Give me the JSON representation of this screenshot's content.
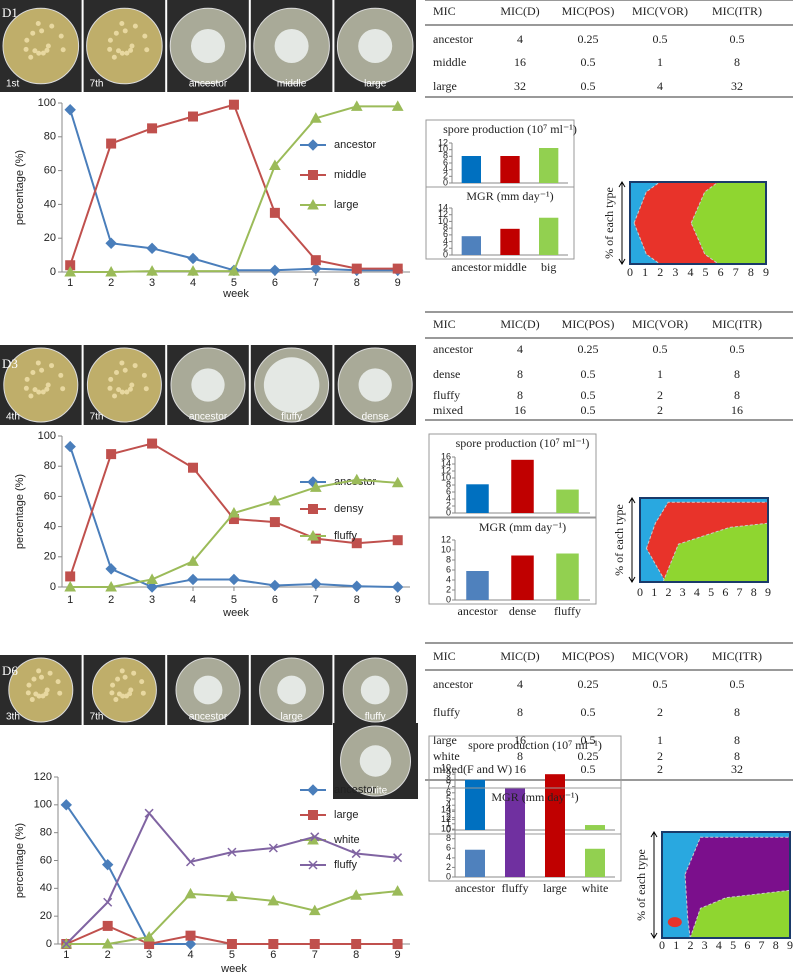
{
  "panels": [
    {
      "label": "D1",
      "photos": [
        "1st",
        "7th",
        "ancestor",
        "middle",
        "large"
      ],
      "table": {
        "header": [
          "MIC",
          "MIC(D)",
          "MIC(POS)",
          "MIC(VOR)",
          "MIC(ITR)"
        ],
        "rows": [
          [
            "ancestor",
            4,
            0.25,
            0.5,
            0.5
          ],
          [
            "middle",
            16,
            0.5,
            1,
            8
          ],
          [
            "large",
            32,
            0.5,
            4,
            32
          ]
        ]
      },
      "muller": {
        "ylabel": "% of each type",
        "xticks": [
          0,
          1,
          2,
          3,
          4,
          5,
          6,
          7,
          8,
          9
        ]
      }
    },
    {
      "label": "D3",
      "photos": [
        "4th",
        "7th",
        "ancestor",
        "fluffy",
        "dense"
      ],
      "table": {
        "header": [
          "MIC",
          "MIC(D)",
          "MIC(POS)",
          "MIC(VOR)",
          "MIC(ITR)"
        ],
        "rows": [
          [
            "ancestor",
            4,
            0.25,
            0.5,
            0.5
          ],
          [
            "dense",
            8,
            0.5,
            1,
            8
          ],
          [
            "fluffy",
            8,
            0.5,
            2,
            8
          ],
          [
            "mixed",
            16,
            0.5,
            2,
            16
          ]
        ]
      },
      "muller": {
        "ylabel": "% of each type",
        "xticks": [
          0,
          1,
          2,
          3,
          4,
          5,
          6,
          7,
          8,
          9
        ]
      }
    },
    {
      "label": "D6",
      "photos": [
        "3th",
        "7th",
        "ancestor",
        "large",
        "fluffy",
        "white"
      ],
      "table": {
        "header": [
          "MIC",
          "MIC(D)",
          "MIC(POS)",
          "MIC(VOR)",
          "MIC(ITR)"
        ],
        "rows": [
          [
            "ancestor",
            4,
            0.25,
            0.5,
            0.5
          ],
          [
            "fluffy",
            8,
            0.5,
            2,
            8
          ],
          [
            "large",
            16,
            0.5,
            1,
            8
          ],
          [
            "white",
            8,
            0.25,
            2,
            8
          ],
          [
            "mixed(F and W)",
            16,
            0.5,
            2,
            32
          ]
        ]
      },
      "muller": {
        "ylabel": "% of each type",
        "xticks": [
          0,
          1,
          2,
          3,
          4,
          5,
          6,
          7,
          8,
          9
        ]
      }
    }
  ],
  "chart_data": [
    {
      "type": "line",
      "xlabel": "week",
      "ylabel": "percentage (%)",
      "x": [
        1,
        2,
        3,
        4,
        5,
        6,
        7,
        8,
        9
      ],
      "xlim": [
        0.8,
        9.3
      ],
      "xticks": [
        1,
        2,
        3,
        4,
        5,
        6,
        7,
        8,
        9
      ],
      "ylim": [
        0,
        100
      ],
      "yticks": [
        0,
        20,
        40,
        60,
        80,
        100
      ],
      "series": [
        {
          "name": "ancestor",
          "color": "#4a7ebb",
          "marker": "diamond",
          "values": [
            96,
            17,
            14,
            8,
            1,
            1,
            2,
            1,
            1
          ]
        },
        {
          "name": "middle",
          "color": "#c0504d",
          "marker": "square",
          "values": [
            4,
            76,
            85,
            92,
            99,
            35,
            7,
            2,
            2
          ]
        },
        {
          "name": "large",
          "color": "#9bbb59",
          "marker": "triangle",
          "values": [
            0,
            0,
            0.5,
            0.5,
            0.5,
            63,
            91,
            98,
            98
          ]
        }
      ]
    },
    {
      "type": "bar",
      "title": "spore production (10⁷ ml⁻¹)",
      "categories": [
        null,
        null,
        null
      ],
      "colors": [
        "#0070c0",
        "#c00000",
        "#92d050"
      ],
      "values": [
        8.1,
        8.1,
        10.5
      ],
      "ylim": [
        0,
        12
      ],
      "yticks": [
        0,
        2,
        4,
        6,
        8,
        10,
        12
      ]
    },
    {
      "type": "bar",
      "title": "MGR (mm day⁻¹)",
      "categories": [
        "ancestor",
        "middle",
        "big"
      ],
      "colors": [
        "#4f81bd",
        "#c00000",
        "#92d050"
      ],
      "values": [
        5.6,
        7.8,
        11.1
      ],
      "ylim": [
        0,
        14
      ],
      "yticks": [
        0,
        2,
        4,
        6,
        8,
        10,
        12,
        14
      ]
    },
    {
      "type": "line",
      "xlabel": "week",
      "ylabel": "percentage (%)",
      "x": [
        1,
        2,
        3,
        4,
        5,
        6,
        7,
        8,
        9
      ],
      "xlim": [
        0.8,
        9.3
      ],
      "xticks": [
        1,
        2,
        3,
        4,
        5,
        6,
        7,
        8,
        9
      ],
      "ylim": [
        0,
        100
      ],
      "yticks": [
        0,
        20,
        40,
        60,
        80,
        100
      ],
      "series": [
        {
          "name": "ancestor",
          "color": "#4a7ebb",
          "marker": "diamond",
          "values": [
            93,
            12,
            0,
            5,
            5,
            1,
            2,
            0.5,
            0
          ]
        },
        {
          "name": "densy",
          "color": "#c0504d",
          "marker": "square",
          "values": [
            7,
            88,
            95,
            79,
            45,
            43,
            32,
            29,
            31
          ]
        },
        {
          "name": "fluffy",
          "color": "#9bbb59",
          "marker": "triangle",
          "values": [
            0,
            0,
            5,
            17,
            49,
            57,
            66,
            71,
            69
          ]
        }
      ]
    },
    {
      "type": "bar",
      "title": "spore production (10⁷ ml⁻¹)",
      "categories": [
        null,
        null,
        null
      ],
      "colors": [
        "#0070c0",
        "#c00000",
        "#92d050"
      ],
      "values": [
        8.2,
        15.2,
        6.7
      ],
      "ylim": [
        0,
        16
      ],
      "yticks": [
        0,
        2,
        4,
        6,
        8,
        10,
        12,
        14,
        16
      ]
    },
    {
      "type": "bar",
      "title": "MGR (mm day⁻¹)",
      "categories": [
        "ancestor",
        "dense",
        "fluffy"
      ],
      "colors": [
        "#4f81bd",
        "#c00000",
        "#92d050"
      ],
      "values": [
        5.8,
        8.9,
        9.3
      ],
      "ylim": [
        0,
        12
      ],
      "yticks": [
        0,
        2,
        4,
        6,
        8,
        10,
        12
      ]
    },
    {
      "type": "line",
      "xlabel": "week",
      "ylabel": "percentage (%)",
      "x": [
        1,
        2,
        3,
        4,
        5,
        6,
        7,
        8,
        9
      ],
      "xlim": [
        0.8,
        9.3
      ],
      "xticks": [
        1,
        2,
        3,
        4,
        5,
        6,
        7,
        8,
        9
      ],
      "ylim": [
        0,
        120
      ],
      "yticks": [
        0,
        20,
        40,
        60,
        80,
        100,
        120
      ],
      "series": [
        {
          "name": "ancestor",
          "color": "#4a7ebb",
          "marker": "diamond",
          "values": [
            100,
            57,
            0,
            0,
            null,
            null,
            null,
            null,
            null
          ]
        },
        {
          "name": "large",
          "color": "#c0504d",
          "marker": "square",
          "values": [
            0,
            13,
            0,
            6,
            0,
            0,
            0,
            0,
            0
          ]
        },
        {
          "name": "white",
          "color": "#9bbb59",
          "marker": "triangle",
          "values": [
            0,
            0,
            5,
            36,
            34,
            31,
            24,
            35,
            38
          ]
        },
        {
          "name": "fluffy",
          "color": "#8064a2",
          "marker": "x",
          "values": [
            0,
            30,
            94,
            59,
            66,
            69,
            77,
            65,
            62
          ]
        }
      ]
    },
    {
      "type": "bar",
      "title": "spore production (10⁷ ml⁻¹)",
      "categories": [
        null,
        null,
        null,
        null
      ],
      "colors": [
        "#0070c0",
        "#7030a0",
        "#c00000",
        "#92d050"
      ],
      "values": [
        8.1,
        6.7,
        9.0,
        0.8
      ],
      "ylim": [
        0,
        10
      ],
      "yticks": [
        0,
        1,
        2,
        3,
        4,
        5,
        6,
        7,
        8,
        9,
        10
      ]
    },
    {
      "type": "bar",
      "title": "MGR (mm day⁻¹)",
      "categories": [
        "ancestor",
        "fluffy",
        "large",
        "white"
      ],
      "colors": [
        "#4f81bd",
        "#7030a0",
        "#c00000",
        "#92d050"
      ],
      "values": [
        5.7,
        11.7,
        10.5,
        5.9
      ],
      "ylim": [
        0,
        14
      ],
      "yticks": [
        0,
        2,
        4,
        6,
        8,
        10,
        12,
        14
      ]
    }
  ]
}
